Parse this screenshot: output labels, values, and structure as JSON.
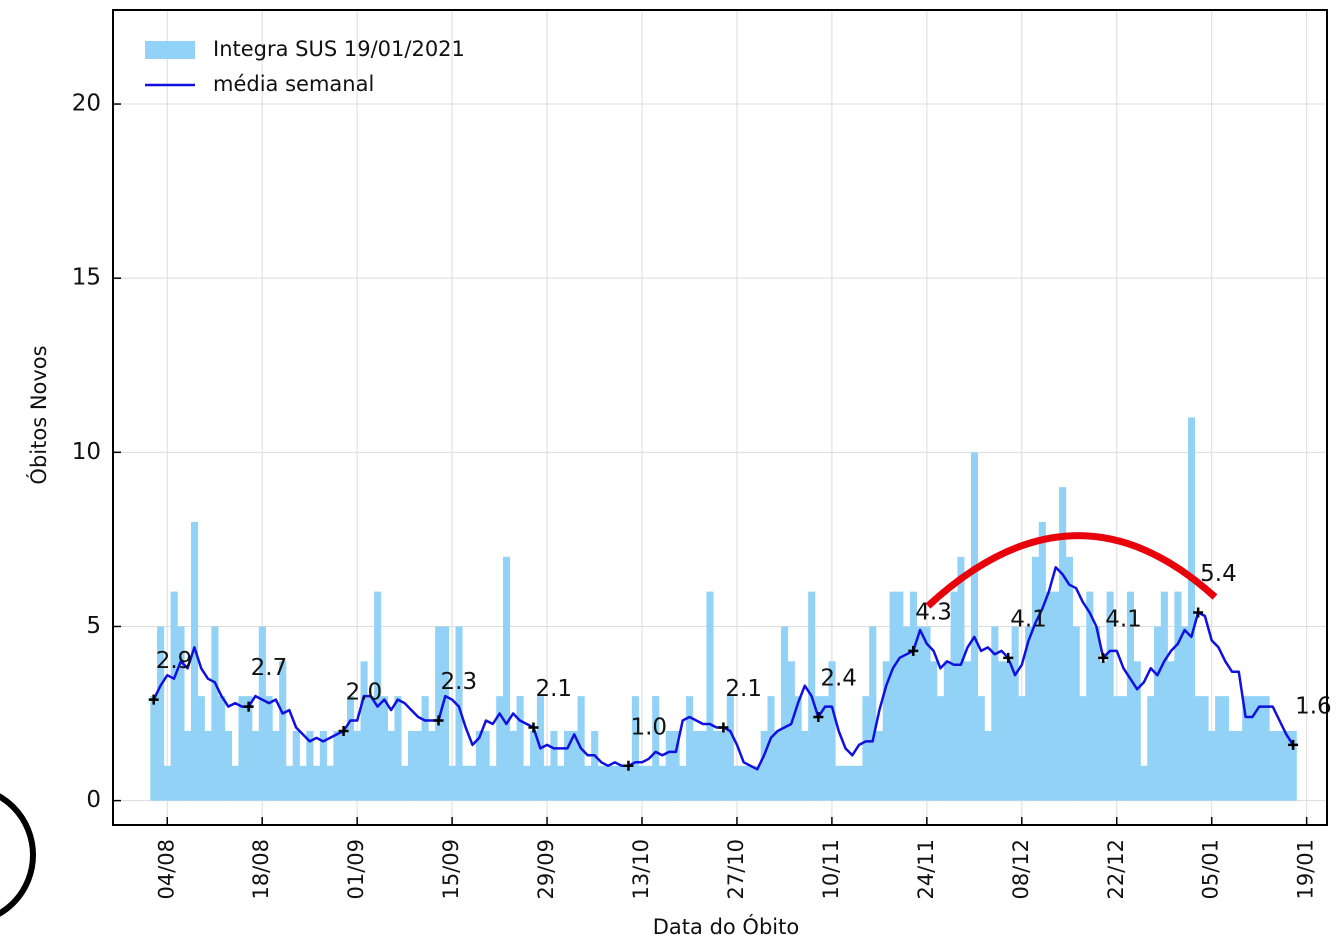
{
  "chart_data": {
    "type": "bar",
    "ylabel": "Óbitos Novos",
    "xlabel": "Data do Óbito",
    "x": [
      "02/08",
      "03/08",
      "04/08",
      "05/08",
      "06/08",
      "07/08",
      "08/08",
      "09/08",
      "10/08",
      "11/08",
      "12/08",
      "13/08",
      "14/08",
      "15/08",
      "16/08",
      "17/08",
      "18/08",
      "19/08",
      "20/08",
      "21/08",
      "22/08",
      "23/08",
      "24/08",
      "25/08",
      "26/08",
      "27/08",
      "28/08",
      "29/08",
      "30/08",
      "31/08",
      "01/09",
      "02/09",
      "03/09",
      "04/09",
      "05/09",
      "06/09",
      "07/09",
      "08/09",
      "09/09",
      "10/09",
      "11/09",
      "12/09",
      "13/09",
      "14/09",
      "15/09",
      "16/09",
      "17/09",
      "18/09",
      "19/09",
      "20/09",
      "21/09",
      "22/09",
      "23/09",
      "24/09",
      "25/09",
      "26/09",
      "27/09",
      "28/09",
      "29/09",
      "30/09",
      "01/10",
      "02/10",
      "03/10",
      "04/10",
      "05/10",
      "06/10",
      "07/10",
      "08/10",
      "09/10",
      "10/10",
      "11/10",
      "12/10",
      "13/10",
      "14/10",
      "15/10",
      "16/10",
      "17/10",
      "18/10",
      "19/10",
      "20/10",
      "21/10",
      "22/10",
      "23/10",
      "24/10",
      "25/10",
      "26/10",
      "27/10",
      "28/10",
      "29/10",
      "30/10",
      "31/10",
      "01/11",
      "02/11",
      "03/11",
      "04/11",
      "05/11",
      "06/11",
      "07/11",
      "08/11",
      "09/11",
      "10/11",
      "11/11",
      "12/11",
      "13/11",
      "14/11",
      "15/11",
      "16/11",
      "17/11",
      "18/11",
      "19/11",
      "20/11",
      "21/11",
      "22/11",
      "23/11",
      "24/11",
      "25/11",
      "26/11",
      "27/11",
      "28/11",
      "29/11",
      "30/11",
      "01/12",
      "02/12",
      "03/12",
      "04/12",
      "05/12",
      "06/12",
      "07/12",
      "08/12",
      "09/12",
      "10/12",
      "11/12",
      "12/12",
      "13/12",
      "14/12",
      "15/12",
      "16/12",
      "17/12",
      "18/12",
      "19/12",
      "20/12",
      "21/12",
      "22/12",
      "23/12",
      "24/12",
      "25/12",
      "26/12",
      "27/12",
      "28/12",
      "29/12",
      "30/12",
      "31/12",
      "01/01",
      "02/01",
      "03/01",
      "04/01",
      "05/01",
      "06/01",
      "07/01",
      "08/01",
      "09/01",
      "10/01",
      "11/01",
      "12/01",
      "13/01",
      "14/01",
      "15/01",
      "16/01",
      "17/01"
    ],
    "series": [
      {
        "name": "Integra SUS 19/01/2021",
        "type": "bar",
        "color": "#92d2f7",
        "values": [
          3,
          5,
          1,
          6,
          5,
          2,
          8,
          3,
          2,
          5,
          3,
          2,
          1,
          3,
          3,
          2,
          5,
          3,
          2,
          4,
          1,
          2,
          1,
          2,
          1,
          2,
          1,
          2,
          2,
          3,
          2,
          4,
          3,
          6,
          3,
          2,
          3,
          1,
          2,
          2,
          3,
          2,
          5,
          5,
          1,
          5,
          1,
          1,
          2,
          2,
          1,
          3,
          7,
          2,
          3,
          1,
          2,
          3,
          1,
          2,
          1,
          2,
          2,
          3,
          1,
          2,
          1,
          1,
          1,
          1,
          1,
          3,
          1,
          1,
          3,
          1,
          2,
          2,
          1,
          3,
          2,
          2,
          6,
          2,
          2,
          3,
          1,
          1,
          1,
          1,
          2,
          3,
          2,
          5,
          4,
          3,
          2,
          6,
          3,
          3,
          4,
          1,
          1,
          1,
          1,
          3,
          5,
          2,
          4,
          6,
          6,
          5,
          6,
          5,
          5,
          4,
          3,
          4,
          6,
          7,
          4,
          10,
          3,
          2,
          5,
          4,
          4,
          5,
          3,
          5,
          7,
          8,
          6,
          6,
          9,
          7,
          5,
          3,
          6,
          5,
          4,
          6,
          3,
          3,
          6,
          4,
          1,
          3,
          5,
          6,
          4,
          6,
          5,
          11,
          3,
          3,
          2,
          3,
          3,
          2,
          2,
          3,
          3,
          3,
          3,
          2,
          2,
          2,
          2
        ]
      },
      {
        "name": "média  semanal",
        "type": "line",
        "color": "#1010e0",
        "values": [
          2.9,
          3.3,
          3.6,
          3.5,
          4.0,
          3.8,
          4.4,
          3.8,
          3.5,
          3.4,
          3.0,
          2.7,
          2.8,
          2.7,
          2.7,
          3.0,
          2.9,
          2.8,
          2.9,
          2.5,
          2.6,
          2.1,
          1.9,
          1.7,
          1.8,
          1.7,
          1.8,
          1.9,
          2.0,
          2.3,
          2.3,
          3.0,
          3.0,
          2.7,
          2.9,
          2.6,
          2.9,
          2.8,
          2.6,
          2.4,
          2.3,
          2.3,
          2.3,
          3.0,
          2.9,
          2.7,
          2.1,
          1.6,
          1.8,
          2.3,
          2.2,
          2.5,
          2.2,
          2.5,
          2.3,
          2.2,
          2.1,
          1.5,
          1.6,
          1.5,
          1.5,
          1.5,
          1.9,
          1.5,
          1.3,
          1.3,
          1.1,
          1.0,
          1.1,
          1.0,
          1.0,
          1.1,
          1.1,
          1.2,
          1.4,
          1.3,
          1.4,
          1.4,
          2.3,
          2.4,
          2.3,
          2.2,
          2.2,
          2.1,
          2.1,
          2.0,
          1.6,
          1.1,
          1.0,
          0.9,
          1.3,
          1.8,
          2.0,
          2.1,
          2.2,
          2.8,
          3.3,
          3.0,
          2.4,
          2.7,
          2.7,
          2.0,
          1.5,
          1.3,
          1.6,
          1.7,
          1.7,
          2.6,
          3.3,
          3.8,
          4.1,
          4.2,
          4.3,
          4.9,
          4.5,
          4.3,
          3.8,
          4.0,
          3.9,
          3.9,
          4.4,
          4.7,
          4.3,
          4.4,
          4.2,
          4.3,
          4.1,
          3.6,
          3.9,
          4.6,
          5.1,
          5.5,
          6.0,
          6.7,
          6.5,
          6.2,
          6.1,
          5.7,
          5.4,
          5.0,
          4.1,
          4.3,
          4.3,
          3.8,
          3.5,
          3.2,
          3.4,
          3.8,
          3.6,
          4.0,
          4.3,
          4.5,
          4.9,
          4.7,
          5.4,
          5.3,
          4.6,
          4.4,
          4.0,
          3.7,
          3.7,
          2.4,
          2.4,
          2.7,
          2.7,
          2.7,
          2.3,
          1.9,
          1.6
        ],
        "value_labels": [
          "2.9",
          null,
          null,
          null,
          null,
          null,
          null,
          null,
          null,
          null,
          null,
          null,
          null,
          null,
          "2.7",
          null,
          null,
          null,
          null,
          null,
          null,
          null,
          null,
          null,
          null,
          null,
          null,
          null,
          "2.0",
          null,
          null,
          null,
          null,
          null,
          null,
          null,
          null,
          null,
          null,
          null,
          null,
          null,
          "2.3",
          null,
          null,
          null,
          null,
          null,
          null,
          null,
          null,
          null,
          null,
          null,
          null,
          null,
          "2.1",
          null,
          null,
          null,
          null,
          null,
          null,
          null,
          null,
          null,
          null,
          null,
          null,
          null,
          "1.0",
          null,
          null,
          null,
          null,
          null,
          null,
          null,
          null,
          null,
          null,
          null,
          null,
          null,
          "2.1",
          null,
          null,
          null,
          null,
          null,
          null,
          null,
          null,
          null,
          null,
          null,
          null,
          null,
          "2.4",
          null,
          null,
          null,
          null,
          null,
          null,
          null,
          null,
          null,
          null,
          null,
          null,
          null,
          "4.3",
          null,
          null,
          null,
          null,
          null,
          null,
          null,
          null,
          null,
          null,
          null,
          null,
          null,
          "4.1",
          null,
          null,
          null,
          null,
          null,
          null,
          null,
          null,
          null,
          null,
          null,
          null,
          null,
          "4.1",
          null,
          null,
          null,
          null,
          null,
          null,
          null,
          null,
          null,
          null,
          null,
          null,
          null,
          "5.4",
          null,
          null,
          null,
          null,
          null,
          null,
          null,
          null,
          null,
          null,
          null,
          null,
          null,
          "1.6"
        ]
      }
    ],
    "xlim": [
      "27/07",
      "22/01"
    ],
    "xticks": [
      "04/08",
      "18/08",
      "01/09",
      "15/09",
      "29/09",
      "13/10",
      "27/10",
      "10/11",
      "24/11",
      "08/12",
      "22/12",
      "05/01",
      "19/01"
    ],
    "ylim": [
      -0.7,
      22.7
    ],
    "yticks": [
      0,
      5,
      10,
      15,
      20
    ],
    "grid": true,
    "legend": "upper left"
  }
}
